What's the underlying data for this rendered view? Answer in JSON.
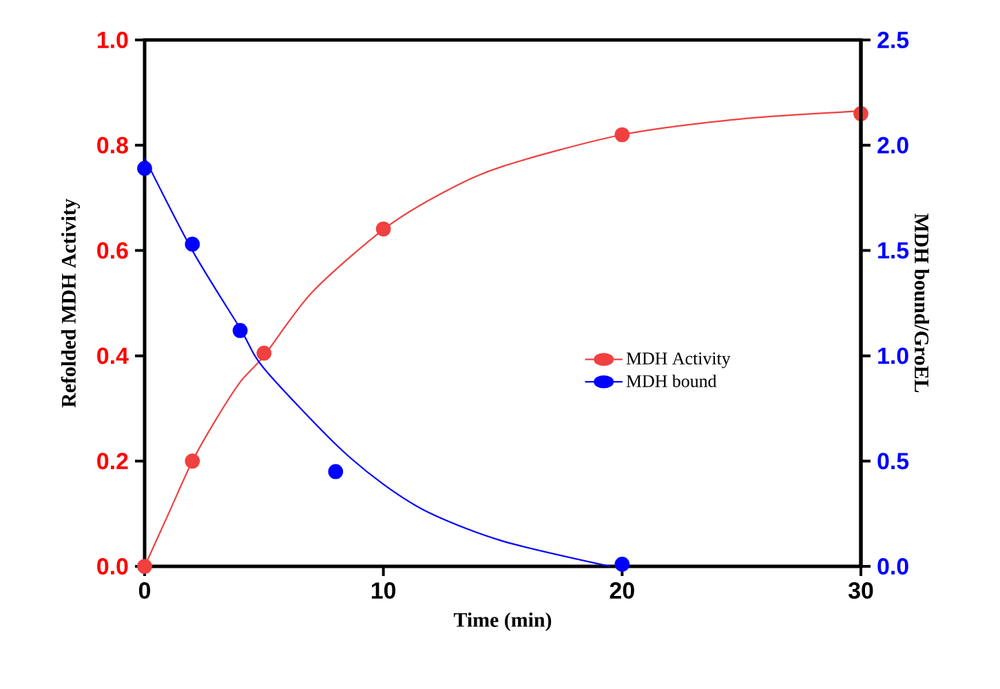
{
  "chart_data": {
    "type": "scatter",
    "xlabel": "Time (min)",
    "ylabel": "Refolded MDH Activity",
    "y2label": "MDH bound/GroEL",
    "xlim": [
      0,
      30
    ],
    "xticks": [
      0,
      10,
      20,
      30
    ],
    "ylim": [
      0,
      1.0
    ],
    "yticks": [
      {
        "value": 0,
        "label": "0.0"
      },
      0.2,
      0.4,
      0.6,
      0.8,
      {
        "value": 1.0,
        "label": "1.0"
      }
    ],
    "y2lim": [
      0,
      2.5
    ],
    "y2ticks": [
      {
        "value": 0,
        "label": "0.0"
      },
      0.5,
      {
        "value": 1.0,
        "label": "1.0"
      },
      1.5,
      {
        "value": 2.0,
        "label": "2.0"
      },
      2.5
    ],
    "legend": "right",
    "series": [
      {
        "name": "MDH Activity",
        "marker": "circle",
        "color": "#f04040",
        "x": [
          0,
          2,
          5,
          10,
          20,
          30
        ],
        "values": [
          0,
          0.2,
          0.405,
          0.641,
          0.82,
          0.86
        ]
      },
      {
        "type": "line",
        "marker": "none",
        "color": "#f04040",
        "x": [
          0,
          1,
          2,
          3,
          4,
          5,
          7,
          10,
          12.5,
          15,
          20,
          25,
          30
        ],
        "values": [
          0,
          0.1,
          0.2,
          0.28,
          0.35,
          0.4,
          0.52,
          0.64,
          0.71,
          0.76,
          0.82,
          0.85,
          0.865
        ]
      },
      {
        "name": "MDH bound",
        "marker": "circle",
        "axis": "y2",
        "color": "#0000ff",
        "x": [
          0,
          2,
          4,
          8,
          20
        ],
        "values": [
          1.89,
          1.53,
          1.12,
          0.45,
          0.01
        ]
      },
      {
        "type": "line",
        "marker": "none",
        "axis": "y2",
        "color": "#0000ff",
        "x": [
          0,
          2,
          4,
          5,
          8,
          10,
          12,
          15,
          19.5
        ],
        "values": [
          1.94,
          1.5,
          1.13,
          0.94,
          0.58,
          0.39,
          0.25,
          0.12,
          0
        ]
      }
    ]
  }
}
